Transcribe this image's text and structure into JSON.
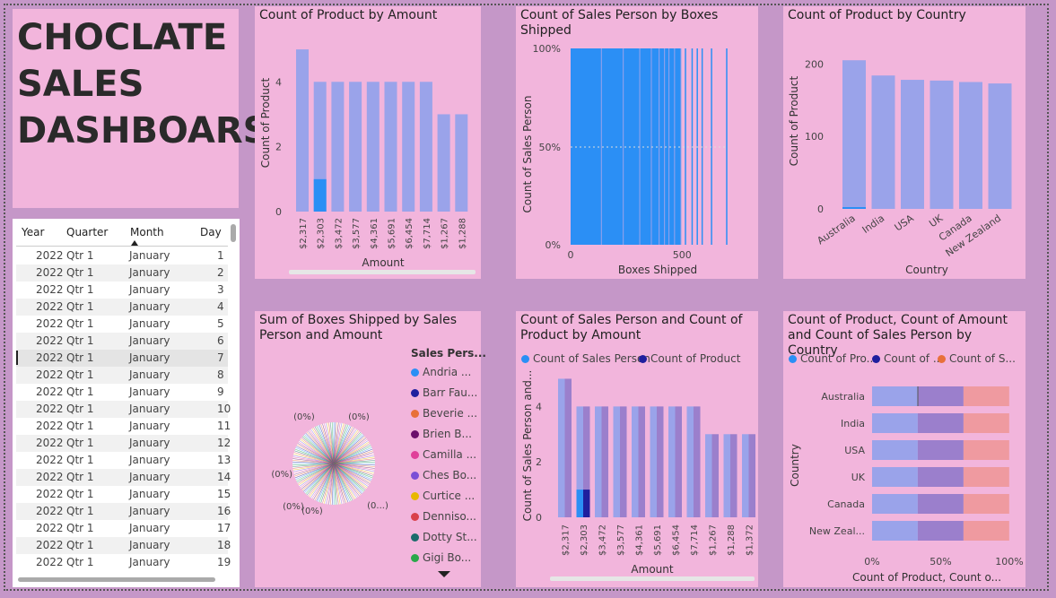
{
  "dashboard_title": [
    "CHOCLATE",
    "SALES",
    "DASHBOARS"
  ],
  "table": {
    "columns": [
      "Year",
      "Quarter",
      "Month",
      "Day"
    ],
    "rows": [
      [
        "2022",
        "Qtr 1",
        "January",
        "1"
      ],
      [
        "2022",
        "Qtr 1",
        "January",
        "2"
      ],
      [
        "2022",
        "Qtr 1",
        "January",
        "3"
      ],
      [
        "2022",
        "Qtr 1",
        "January",
        "4"
      ],
      [
        "2022",
        "Qtr 1",
        "January",
        "5"
      ],
      [
        "2022",
        "Qtr 1",
        "January",
        "6"
      ],
      [
        "2022",
        "Qtr 1",
        "January",
        "7"
      ],
      [
        "2022",
        "Qtr 1",
        "January",
        "8"
      ],
      [
        "2022",
        "Qtr 1",
        "January",
        "9"
      ],
      [
        "2022",
        "Qtr 1",
        "January",
        "10"
      ],
      [
        "2022",
        "Qtr 1",
        "January",
        "11"
      ],
      [
        "2022",
        "Qtr 1",
        "January",
        "12"
      ],
      [
        "2022",
        "Qtr 1",
        "January",
        "13"
      ],
      [
        "2022",
        "Qtr 1",
        "January",
        "14"
      ],
      [
        "2022",
        "Qtr 1",
        "January",
        "15"
      ],
      [
        "2022",
        "Qtr 1",
        "January",
        "16"
      ],
      [
        "2022",
        "Qtr 1",
        "January",
        "17"
      ],
      [
        "2022",
        "Qtr 1",
        "January",
        "18"
      ],
      [
        "2022",
        "Qtr 1",
        "January",
        "19"
      ]
    ],
    "selected_row": 6
  },
  "colors": {
    "bar": "#9aa3ea",
    "highlight": "#2b8ff5",
    "dark": "#1f1f9e",
    "purple": "#9b7fcc",
    "salmon": "#ef9aa0"
  },
  "chart_data": [
    {
      "id": "product_by_amount",
      "type": "bar",
      "title": "Count of Product by Amount",
      "xlabel": "Amount",
      "ylabel": "Count of Product",
      "categories": [
        "$2,317",
        "$2,303",
        "$3,472",
        "$3,577",
        "$4,361",
        "$5,691",
        "$6,454",
        "$7,714",
        "$1,267",
        "$1,288"
      ],
      "values": [
        5,
        4,
        4,
        4,
        4,
        4,
        4,
        4,
        3,
        3
      ],
      "highlight": [
        0,
        1,
        0,
        0,
        0,
        0,
        0,
        0,
        0,
        0
      ],
      "yticks": [
        "0",
        "2",
        "4"
      ],
      "ylim": [
        0,
        5.5
      ]
    },
    {
      "id": "salesperson_by_boxes",
      "type": "area",
      "title": "Count of Sales Person by Boxes Shipped",
      "xlabel": "Boxes Shipped",
      "ylabel": "Count of Sales Person",
      "xticks": [
        "0",
        "500"
      ],
      "yticks": [
        "0%",
        "50%",
        "100%"
      ],
      "xlim": [
        0,
        700
      ]
    },
    {
      "id": "product_by_country",
      "type": "bar",
      "title": "Count of Product by Country",
      "xlabel": "Country",
      "ylabel": "Count of Product",
      "categories": [
        "Australia",
        "India",
        "USA",
        "UK",
        "Canada",
        "New Zealand"
      ],
      "values": [
        205,
        184,
        178,
        177,
        175,
        173
      ],
      "yticks": [
        "0",
        "100",
        "200"
      ],
      "ylim": [
        0,
        230
      ]
    },
    {
      "id": "boxes_by_salesperson_amount",
      "type": "pie",
      "title": "Sum of Boxes Shipped by Sales Person and Amount",
      "legend_title": "Sales Pers...",
      "legend": [
        {
          "name": "Andria ...",
          "color": "#2b8ff5"
        },
        {
          "name": "Barr Fau...",
          "color": "#1f1f9e"
        },
        {
          "name": "Beverie ...",
          "color": "#e8703a"
        },
        {
          "name": "Brien B...",
          "color": "#6b0f6b"
        },
        {
          "name": "Camilla ...",
          "color": "#e0409a"
        },
        {
          "name": "Ches Bo...",
          "color": "#7b4fd6"
        },
        {
          "name": "Curtice ...",
          "color": "#e8b800"
        },
        {
          "name": "Denniso...",
          "color": "#d9414a"
        },
        {
          "name": "Dotty St...",
          "color": "#1b6b6b"
        },
        {
          "name": "Gigi Bo...",
          "color": "#2aa84a"
        }
      ],
      "data_labels": [
        "(0%)",
        "(0%)",
        "(0%)",
        "(0%)",
        "(0%)",
        "(0...)"
      ]
    },
    {
      "id": "salesperson_product_by_amount",
      "type": "bar",
      "title": "Count of Sales Person and Count of Product by Amount",
      "xlabel": "Amount",
      "ylabel": "Count of Sales Person and...",
      "categories": [
        "$2,317",
        "$2,303",
        "$3,472",
        "$3,577",
        "$4,361",
        "$5,691",
        "$6,454",
        "$7,714",
        "$1,267",
        "$1,288",
        "$1,372"
      ],
      "series": [
        {
          "name": "Count of Sales Person",
          "values": [
            5,
            4,
            4,
            4,
            4,
            4,
            4,
            4,
            3,
            3,
            3
          ],
          "color": "#2b8ff5"
        },
        {
          "name": "Count of Product",
          "values": [
            5,
            4,
            4,
            4,
            4,
            4,
            4,
            4,
            3,
            3,
            3
          ],
          "color": "#1f1f9e"
        }
      ],
      "yticks": [
        "0",
        "2",
        "4"
      ],
      "ylim": [
        0,
        5.5
      ]
    },
    {
      "id": "product_amount_salesperson_by_country",
      "type": "bar",
      "title": "Count of Product, Count of Amount and Count of Sales Person by Country",
      "xlabel": "Count of Product, Count o...",
      "ylabel": "Country",
      "categories": [
        "Australia",
        "India",
        "USA",
        "UK",
        "Canada",
        "New Zeal..."
      ],
      "series": [
        {
          "name": "Count of Pro...",
          "values": [
            33.3,
            33.3,
            33.3,
            33.3,
            33.3,
            33.3
          ],
          "color": "#2b8ff5"
        },
        {
          "name": "Count of ...",
          "values": [
            33.3,
            33.3,
            33.3,
            33.3,
            33.3,
            33.3
          ],
          "color": "#1f1f9e"
        },
        {
          "name": "Count of S...",
          "values": [
            33.3,
            33.3,
            33.3,
            33.3,
            33.3,
            33.3
          ],
          "color": "#e8703a"
        }
      ],
      "xticks": [
        "0%",
        "50%",
        "100%"
      ]
    }
  ]
}
